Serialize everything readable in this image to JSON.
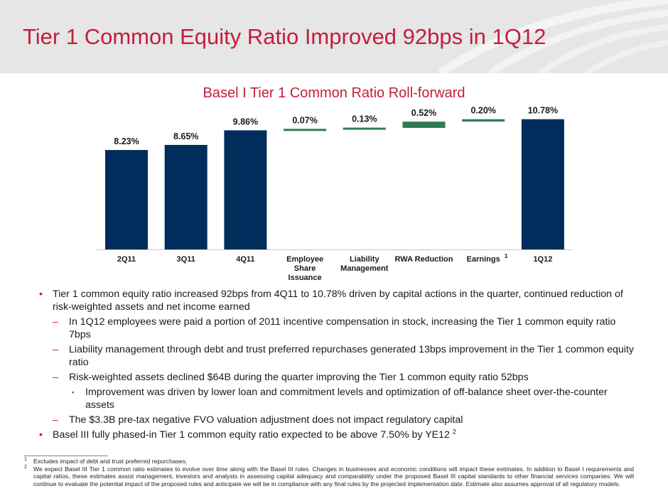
{
  "header": {
    "title": "Tier 1 Common Equity Ratio Improved 92bps in 1Q12"
  },
  "chart_data": {
    "type": "bar",
    "subtype": "waterfall",
    "title": "Basel I Tier 1 Common Ratio Roll-forward",
    "categories": [
      "2Q11",
      "3Q11",
      "4Q11",
      "Employee Share Issuance",
      "Liability Management",
      "RWA Reduction",
      "Earnings",
      "1Q12"
    ],
    "category_notes": [
      "",
      "",
      "",
      "",
      "",
      "",
      "1",
      ""
    ],
    "values": [
      8.23,
      8.65,
      9.86,
      0.07,
      0.13,
      0.52,
      0.2,
      10.78
    ],
    "labels": [
      "8.23%",
      "8.65%",
      "9.86%",
      "0.07%",
      "0.13%",
      "0.52%",
      "0.20%",
      "10.78%"
    ],
    "kinds": [
      "total",
      "total",
      "total",
      "delta",
      "delta",
      "delta",
      "delta",
      "total"
    ],
    "ylim": [
      0,
      11
    ],
    "xlabel": "",
    "ylabel": "",
    "colors": {
      "total": "#002d5c",
      "delta": "#2e7d4f"
    }
  },
  "bullets": [
    {
      "level": 1,
      "text": "Tier 1 common equity ratio increased 92bps from 4Q11 to 10.78% driven by capital actions in the quarter, continued reduction of risk-weighted assets and net income earned"
    },
    {
      "level": 2,
      "text": "In 1Q12 employees were paid a portion of 2011 incentive compensation in stock, increasing the Tier 1 common equity ratio 7bps"
    },
    {
      "level": 2,
      "text": "Liability management through debt and trust preferred repurchases generated 13bps improvement in the Tier 1 common equity ratio"
    },
    {
      "level": 2,
      "text": "Risk-weighted assets declined $64B during the quarter improving the Tier 1 common equity ratio 52bps"
    },
    {
      "level": 3,
      "text": "Improvement was driven by lower loan and commitment levels and optimization of off-balance sheet over-the-counter assets"
    },
    {
      "level": 2,
      "text": "The $3.3B pre-tax negative FVO valuation adjustment does not impact regulatory capital"
    },
    {
      "level": 1,
      "text": "Basel III fully phased-in Tier 1 common equity ratio expected to be above 7.50% by YE12",
      "sup": "2"
    }
  ],
  "bullet_markers": {
    "level1": "•",
    "level2": "–",
    "level3": "▪"
  },
  "footnotes": [
    {
      "num": "1",
      "text": "Excludes impact of debt and trust preferred repurchases."
    },
    {
      "num": "2",
      "text": "We expect Basel III Tier 1 common ratio estimates to evolve over time along with the Basel III rules. Changes in businesses and economic conditions will impact these estimates. In addition to Basel I requirements and capital ratios, these estimates assist management, investors and analysts in assessing capital adequacy and comparability under the proposed Basel III capital standards to other financial services companies. We will continue to evaluate the potential impact of the proposed rules and anticipate we will be in compliance with any final rules by the projected implementation date. Estimate also assumes approval of all regulatory models."
    }
  ]
}
